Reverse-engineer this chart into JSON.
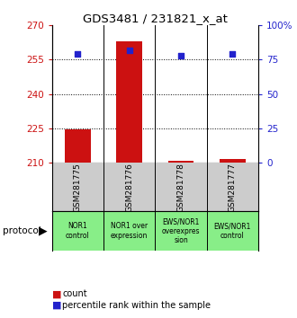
{
  "title": "GDS3481 / 231821_x_at",
  "samples": [
    "GSM281775",
    "GSM281776",
    "GSM281778",
    "GSM281777"
  ],
  "bar_values": [
    224.5,
    263.0,
    210.8,
    211.5
  ],
  "percentile_values": [
    79.0,
    82.0,
    78.0,
    79.0
  ],
  "ylim_left": [
    210,
    270
  ],
  "ylim_right": [
    0,
    100
  ],
  "yticks_left": [
    210,
    225,
    240,
    255,
    270
  ],
  "yticks_right": [
    0,
    25,
    50,
    75,
    100
  ],
  "ytick_labels_right": [
    "0",
    "25",
    "50",
    "75",
    "100%"
  ],
  "bar_color": "#cc1111",
  "square_color": "#2222cc",
  "protocol_labels": [
    "NOR1\ncontrol",
    "NOR1 over\nexpression",
    "EWS/NOR1\noverexpres\nsion",
    "EWS/NOR1\ncontrol"
  ],
  "protocol_bg_color": "#88ee88",
  "sample_bg_color": "#cccccc",
  "hlines": [
    225,
    240,
    255
  ],
  "bar_width": 0.5
}
